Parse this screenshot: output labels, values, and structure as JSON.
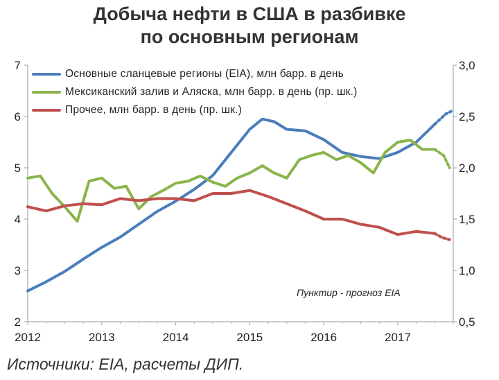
{
  "title_line1": "Добыча нефти в США в разбивке",
  "title_line2": "по основным регионам",
  "source": "Источники: EIA, расчеты ДИП.",
  "note": "Пунктир  - прогноз EIA",
  "chart_data": {
    "type": "line",
    "title": "Добыча нефти в США в разбивке по основным регионам",
    "x_ticks": [
      "2012",
      "2013",
      "2014",
      "2015",
      "2016",
      "2017"
    ],
    "y_left_ticks": [
      "2",
      "3",
      "4",
      "5",
      "6",
      "7"
    ],
    "y_right_ticks": [
      "0,5",
      "1,0",
      "1,5",
      "2,0",
      "2,5",
      "3,0"
    ],
    "y_left_lim": [
      2,
      7
    ],
    "y_right_lim": [
      0.5,
      3.0
    ],
    "x_lim": [
      2012,
      2017.75
    ],
    "grid": false,
    "legend_placement": "top-left",
    "series": [
      {
        "name": "Основные сланцевые регионы (EIA), млн барр. в день",
        "axis": "left",
        "color": "#4a7ebb",
        "points": [
          [
            2012.0,
            2.6
          ],
          [
            2012.25,
            2.78
          ],
          [
            2012.5,
            2.98
          ],
          [
            2012.75,
            3.22
          ],
          [
            2013.0,
            3.45
          ],
          [
            2013.25,
            3.65
          ],
          [
            2013.5,
            3.9
          ],
          [
            2013.75,
            4.15
          ],
          [
            2014.0,
            4.35
          ],
          [
            2014.25,
            4.58
          ],
          [
            2014.5,
            4.85
          ],
          [
            2014.75,
            5.3
          ],
          [
            2015.0,
            5.75
          ],
          [
            2015.17,
            5.95
          ],
          [
            2015.33,
            5.9
          ],
          [
            2015.5,
            5.75
          ],
          [
            2015.75,
            5.72
          ],
          [
            2016.0,
            5.55
          ],
          [
            2016.25,
            5.3
          ],
          [
            2016.5,
            5.22
          ],
          [
            2016.75,
            5.18
          ],
          [
            2017.0,
            5.3
          ],
          [
            2017.25,
            5.5
          ],
          [
            2017.5,
            5.85
          ]
        ],
        "forecast": [
          [
            2017.5,
            5.85
          ],
          [
            2017.65,
            6.05
          ],
          [
            2017.72,
            6.1
          ]
        ]
      },
      {
        "name": "Мексиканский залив и Аляска, млн барр. в день (пр. шк.)",
        "axis": "right",
        "color": "#8ab44a",
        "points": [
          [
            2012.0,
            1.9
          ],
          [
            2012.17,
            1.92
          ],
          [
            2012.33,
            1.75
          ],
          [
            2012.5,
            1.62
          ],
          [
            2012.67,
            1.48
          ],
          [
            2012.83,
            1.87
          ],
          [
            2013.0,
            1.9
          ],
          [
            2013.17,
            1.8
          ],
          [
            2013.33,
            1.82
          ],
          [
            2013.5,
            1.6
          ],
          [
            2013.67,
            1.72
          ],
          [
            2013.83,
            1.78
          ],
          [
            2014.0,
            1.85
          ],
          [
            2014.17,
            1.87
          ],
          [
            2014.33,
            1.92
          ],
          [
            2014.5,
            1.86
          ],
          [
            2014.67,
            1.82
          ],
          [
            2014.83,
            1.9
          ],
          [
            2015.0,
            1.95
          ],
          [
            2015.17,
            2.02
          ],
          [
            2015.33,
            1.95
          ],
          [
            2015.5,
            1.9
          ],
          [
            2015.67,
            2.08
          ],
          [
            2015.83,
            2.12
          ],
          [
            2016.0,
            2.15
          ],
          [
            2016.17,
            2.08
          ],
          [
            2016.33,
            2.12
          ],
          [
            2016.5,
            2.05
          ],
          [
            2016.67,
            1.95
          ],
          [
            2016.83,
            2.15
          ],
          [
            2017.0,
            2.25
          ],
          [
            2017.17,
            2.27
          ],
          [
            2017.33,
            2.18
          ],
          [
            2017.5,
            2.18
          ]
        ],
        "forecast": [
          [
            2017.5,
            2.18
          ],
          [
            2017.62,
            2.12
          ],
          [
            2017.7,
            2.0
          ]
        ]
      },
      {
        "name": "Прочее, млн барр. в день (пр. шк.)",
        "axis": "right",
        "color": "#c0504d",
        "points": [
          [
            2012.0,
            1.62
          ],
          [
            2012.25,
            1.58
          ],
          [
            2012.5,
            1.63
          ],
          [
            2012.75,
            1.65
          ],
          [
            2013.0,
            1.64
          ],
          [
            2013.25,
            1.7
          ],
          [
            2013.5,
            1.68
          ],
          [
            2013.75,
            1.7
          ],
          [
            2014.0,
            1.7
          ],
          [
            2014.25,
            1.68
          ],
          [
            2014.5,
            1.75
          ],
          [
            2014.75,
            1.75
          ],
          [
            2015.0,
            1.78
          ],
          [
            2015.25,
            1.72
          ],
          [
            2015.5,
            1.65
          ],
          [
            2015.75,
            1.58
          ],
          [
            2016.0,
            1.5
          ],
          [
            2016.25,
            1.5
          ],
          [
            2016.5,
            1.45
          ],
          [
            2016.75,
            1.42
          ],
          [
            2017.0,
            1.35
          ],
          [
            2017.25,
            1.38
          ],
          [
            2017.5,
            1.36
          ]
        ],
        "forecast": [
          [
            2017.5,
            1.36
          ],
          [
            2017.6,
            1.32
          ],
          [
            2017.7,
            1.3
          ]
        ]
      }
    ]
  }
}
